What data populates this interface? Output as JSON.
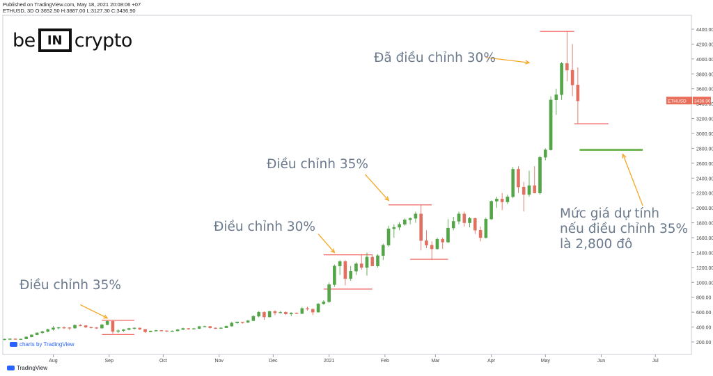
{
  "header": {
    "published": "Published on TradingView.com, May 18, 2021 20:08:06 +07",
    "ohlc": "ETHUSD, 3D O:3652.50 H:3887.00 L:3127.30 C:3436.90"
  },
  "logo": {
    "left": "be",
    "box": "IN",
    "right": "crypto"
  },
  "annotations": {
    "a1": "Điều chỉnh 35%",
    "a2": "Điều chỉnh 30%",
    "a3": "Điều chỉnh 35%",
    "a4": "Đã điều chỉnh 30%",
    "a5_line1": "Mức giá dự tính",
    "a5_line2": "nếu điều chỉnh 35%",
    "a5_line3": "là 2,800 đô"
  },
  "footer": {
    "charts_by": "charts by TradingView",
    "brand": "TradingView"
  },
  "colors": {
    "up": "#53a548",
    "down": "#e07060",
    "level_red": "#ef5350",
    "level_green": "#5aab3a",
    "arrow": "#f5a623",
    "price_tag": "#e96d5a"
  },
  "chart_data": {
    "type": "candlestick",
    "symbol": "ETHUSD",
    "interval": "3D",
    "price_label": "3436.90",
    "current_price": 3436.9,
    "ylim": [
      0,
      4500
    ],
    "yticks": [
      200,
      400,
      600,
      800,
      1000,
      1200,
      1400,
      1600,
      1800,
      2000,
      2200,
      2400,
      2600,
      2800,
      3000,
      3200,
      3400,
      3600,
      3800,
      4000,
      4200,
      4400
    ],
    "ytick_labels": [
      "200.00",
      "400.00",
      "600.00",
      "800.00",
      "1000.00",
      "1200.00",
      "1400.00",
      "1600.00",
      "1800.00",
      "2000.00",
      "2200.00",
      "2400.00",
      "2600.00",
      "2800.00",
      "3000.00",
      "3200.00",
      "3400.00",
      "3600.00",
      "3800.00",
      "4000.00",
      "4200.00",
      "4400.00"
    ],
    "xticks": [
      {
        "label": "Aug",
        "date": "2020-08-01"
      },
      {
        "label": "Sep",
        "date": "2020-09-01"
      },
      {
        "label": "Oct",
        "date": "2020-10-01"
      },
      {
        "label": "Nov",
        "date": "2020-11-01"
      },
      {
        "label": "Dec",
        "date": "2020-12-01"
      },
      {
        "label": "2021",
        "date": "2021-01-01"
      },
      {
        "label": "Feb",
        "date": "2021-02-01"
      },
      {
        "label": "Mar",
        "date": "2021-03-01"
      },
      {
        "label": "Apr",
        "date": "2021-04-01"
      },
      {
        "label": "May",
        "date": "2021-05-01"
      },
      {
        "label": "Jun",
        "date": "2021-06-01"
      },
      {
        "label": "Jul",
        "date": "2021-07-01"
      }
    ],
    "candles": [
      {
        "t": "2020-07-05",
        "o": 230,
        "h": 245,
        "l": 222,
        "c": 238
      },
      {
        "t": "2020-07-08",
        "o": 238,
        "h": 250,
        "l": 232,
        "c": 242
      },
      {
        "t": "2020-07-11",
        "o": 242,
        "h": 246,
        "l": 232,
        "c": 237
      },
      {
        "t": "2020-07-14",
        "o": 237,
        "h": 245,
        "l": 230,
        "c": 240
      },
      {
        "t": "2020-07-17",
        "o": 240,
        "h": 275,
        "l": 236,
        "c": 268
      },
      {
        "t": "2020-07-20",
        "o": 268,
        "h": 300,
        "l": 262,
        "c": 296
      },
      {
        "t": "2020-07-23",
        "o": 296,
        "h": 330,
        "l": 290,
        "c": 322
      },
      {
        "t": "2020-07-26",
        "o": 322,
        "h": 350,
        "l": 310,
        "c": 340
      },
      {
        "t": "2020-07-29",
        "o": 340,
        "h": 378,
        "l": 330,
        "c": 368
      },
      {
        "t": "2020-08-01",
        "o": 368,
        "h": 415,
        "l": 352,
        "c": 390
      },
      {
        "t": "2020-08-04",
        "o": 390,
        "h": 400,
        "l": 370,
        "c": 395
      },
      {
        "t": "2020-08-07",
        "o": 395,
        "h": 410,
        "l": 375,
        "c": 392
      },
      {
        "t": "2020-08-10",
        "o": 392,
        "h": 398,
        "l": 360,
        "c": 385
      },
      {
        "t": "2020-08-13",
        "o": 385,
        "h": 435,
        "l": 380,
        "c": 425
      },
      {
        "t": "2020-08-16",
        "o": 425,
        "h": 440,
        "l": 410,
        "c": 420
      },
      {
        "t": "2020-08-19",
        "o": 420,
        "h": 425,
        "l": 385,
        "c": 398
      },
      {
        "t": "2020-08-22",
        "o": 398,
        "h": 405,
        "l": 380,
        "c": 392
      },
      {
        "t": "2020-08-25",
        "o": 392,
        "h": 400,
        "l": 375,
        "c": 385
      },
      {
        "t": "2020-08-28",
        "o": 385,
        "h": 440,
        "l": 380,
        "c": 432
      },
      {
        "t": "2020-08-31",
        "o": 432,
        "h": 490,
        "l": 425,
        "c": 478
      },
      {
        "t": "2020-09-03",
        "o": 478,
        "h": 485,
        "l": 310,
        "c": 340
      },
      {
        "t": "2020-09-06",
        "o": 340,
        "h": 370,
        "l": 320,
        "c": 352
      },
      {
        "t": "2020-09-09",
        "o": 352,
        "h": 372,
        "l": 335,
        "c": 365
      },
      {
        "t": "2020-09-12",
        "o": 365,
        "h": 390,
        "l": 355,
        "c": 382
      },
      {
        "t": "2020-09-15",
        "o": 382,
        "h": 395,
        "l": 365,
        "c": 388
      },
      {
        "t": "2020-09-18",
        "o": 388,
        "h": 392,
        "l": 360,
        "c": 370
      },
      {
        "t": "2020-09-21",
        "o": 370,
        "h": 372,
        "l": 320,
        "c": 335
      },
      {
        "t": "2020-09-24",
        "o": 335,
        "h": 352,
        "l": 330,
        "c": 348
      },
      {
        "t": "2020-09-27",
        "o": 348,
        "h": 362,
        "l": 340,
        "c": 355
      },
      {
        "t": "2020-09-30",
        "o": 355,
        "h": 362,
        "l": 345,
        "c": 350
      },
      {
        "t": "2020-10-03",
        "o": 350,
        "h": 356,
        "l": 335,
        "c": 345
      },
      {
        "t": "2020-10-06",
        "o": 345,
        "h": 355,
        "l": 335,
        "c": 348
      },
      {
        "t": "2020-10-09",
        "o": 348,
        "h": 372,
        "l": 342,
        "c": 366
      },
      {
        "t": "2020-10-12",
        "o": 366,
        "h": 392,
        "l": 360,
        "c": 382
      },
      {
        "t": "2020-10-15",
        "o": 382,
        "h": 385,
        "l": 365,
        "c": 372
      },
      {
        "t": "2020-10-18",
        "o": 372,
        "h": 390,
        "l": 368,
        "c": 380
      },
      {
        "t": "2020-10-21",
        "o": 380,
        "h": 415,
        "l": 375,
        "c": 408
      },
      {
        "t": "2020-10-24",
        "o": 408,
        "h": 418,
        "l": 400,
        "c": 410
      },
      {
        "t": "2020-10-27",
        "o": 410,
        "h": 412,
        "l": 380,
        "c": 388
      },
      {
        "t": "2020-10-30",
        "o": 388,
        "h": 395,
        "l": 375,
        "c": 385
      },
      {
        "t": "2020-11-02",
        "o": 385,
        "h": 395,
        "l": 375,
        "c": 390
      },
      {
        "t": "2020-11-05",
        "o": 390,
        "h": 420,
        "l": 385,
        "c": 412
      },
      {
        "t": "2020-11-08",
        "o": 412,
        "h": 470,
        "l": 405,
        "c": 455
      },
      {
        "t": "2020-11-11",
        "o": 455,
        "h": 475,
        "l": 445,
        "c": 468
      },
      {
        "t": "2020-11-14",
        "o": 468,
        "h": 472,
        "l": 445,
        "c": 462
      },
      {
        "t": "2020-11-17",
        "o": 462,
        "h": 495,
        "l": 455,
        "c": 485
      },
      {
        "t": "2020-11-20",
        "o": 485,
        "h": 560,
        "l": 478,
        "c": 545
      },
      {
        "t": "2020-11-23",
        "o": 545,
        "h": 615,
        "l": 530,
        "c": 600
      },
      {
        "t": "2020-11-26",
        "o": 600,
        "h": 610,
        "l": 495,
        "c": 535
      },
      {
        "t": "2020-11-29",
        "o": 535,
        "h": 620,
        "l": 530,
        "c": 610
      },
      {
        "t": "2020-12-02",
        "o": 610,
        "h": 625,
        "l": 560,
        "c": 590
      },
      {
        "t": "2020-12-05",
        "o": 590,
        "h": 615,
        "l": 585,
        "c": 600
      },
      {
        "t": "2020-12-08",
        "o": 600,
        "h": 610,
        "l": 560,
        "c": 575
      },
      {
        "t": "2020-12-11",
        "o": 575,
        "h": 600,
        "l": 545,
        "c": 590
      },
      {
        "t": "2020-12-14",
        "o": 590,
        "h": 595,
        "l": 575,
        "c": 580
      },
      {
        "t": "2020-12-17",
        "o": 580,
        "h": 670,
        "l": 575,
        "c": 650
      },
      {
        "t": "2020-12-20",
        "o": 650,
        "h": 672,
        "l": 620,
        "c": 640
      },
      {
        "t": "2020-12-23",
        "o": 640,
        "h": 650,
        "l": 560,
        "c": 600
      },
      {
        "t": "2020-12-26",
        "o": 600,
        "h": 720,
        "l": 595,
        "c": 712
      },
      {
        "t": "2020-12-29",
        "o": 712,
        "h": 760,
        "l": 700,
        "c": 740
      },
      {
        "t": "2021-01-01",
        "o": 740,
        "h": 1000,
        "l": 725,
        "c": 970
      },
      {
        "t": "2021-01-04",
        "o": 970,
        "h": 1240,
        "l": 940,
        "c": 1220
      },
      {
        "t": "2021-01-07",
        "o": 1220,
        "h": 1300,
        "l": 1100,
        "c": 1280
      },
      {
        "t": "2021-01-10",
        "o": 1280,
        "h": 1300,
        "l": 960,
        "c": 1050
      },
      {
        "t": "2021-01-13",
        "o": 1050,
        "h": 1220,
        "l": 1020,
        "c": 1150
      },
      {
        "t": "2021-01-16",
        "o": 1150,
        "h": 1270,
        "l": 1100,
        "c": 1250
      },
      {
        "t": "2021-01-19",
        "o": 1250,
        "h": 1380,
        "l": 1170,
        "c": 1200
      },
      {
        "t": "2021-01-22",
        "o": 1200,
        "h": 1400,
        "l": 1090,
        "c": 1340
      },
      {
        "t": "2021-01-25",
        "o": 1340,
        "h": 1375,
        "l": 1240,
        "c": 1220
      },
      {
        "t": "2021-01-28",
        "o": 1220,
        "h": 1380,
        "l": 1200,
        "c": 1360
      },
      {
        "t": "2021-01-31",
        "o": 1360,
        "h": 1520,
        "l": 1300,
        "c": 1500
      },
      {
        "t": "2021-02-03",
        "o": 1500,
        "h": 1760,
        "l": 1480,
        "c": 1720
      },
      {
        "t": "2021-02-06",
        "o": 1720,
        "h": 1780,
        "l": 1600,
        "c": 1740
      },
      {
        "t": "2021-02-09",
        "o": 1740,
        "h": 1810,
        "l": 1700,
        "c": 1780
      },
      {
        "t": "2021-02-12",
        "o": 1780,
        "h": 1860,
        "l": 1760,
        "c": 1840
      },
      {
        "t": "2021-02-15",
        "o": 1840,
        "h": 1870,
        "l": 1780,
        "c": 1860
      },
      {
        "t": "2021-02-18",
        "o": 1860,
        "h": 1950,
        "l": 1800,
        "c": 1920
      },
      {
        "t": "2021-02-21",
        "o": 1920,
        "h": 2040,
        "l": 1430,
        "c": 1560
      },
      {
        "t": "2021-02-24",
        "o": 1560,
        "h": 1700,
        "l": 1460,
        "c": 1500
      },
      {
        "t": "2021-02-27",
        "o": 1500,
        "h": 1550,
        "l": 1300,
        "c": 1450
      },
      {
        "t": "2021-03-02",
        "o": 1450,
        "h": 1600,
        "l": 1440,
        "c": 1580
      },
      {
        "t": "2021-03-05",
        "o": 1580,
        "h": 1600,
        "l": 1450,
        "c": 1540
      },
      {
        "t": "2021-03-08",
        "o": 1540,
        "h": 1850,
        "l": 1530,
        "c": 1730
      },
      {
        "t": "2021-03-11",
        "o": 1730,
        "h": 1880,
        "l": 1700,
        "c": 1820
      },
      {
        "t": "2021-03-14",
        "o": 1820,
        "h": 1950,
        "l": 1780,
        "c": 1920
      },
      {
        "t": "2021-03-17",
        "o": 1920,
        "h": 1950,
        "l": 1750,
        "c": 1800
      },
      {
        "t": "2021-03-20",
        "o": 1800,
        "h": 1880,
        "l": 1740,
        "c": 1860
      },
      {
        "t": "2021-03-23",
        "o": 1860,
        "h": 1870,
        "l": 1650,
        "c": 1700
      },
      {
        "t": "2021-03-26",
        "o": 1700,
        "h": 1750,
        "l": 1550,
        "c": 1600
      },
      {
        "t": "2021-03-29",
        "o": 1600,
        "h": 1870,
        "l": 1590,
        "c": 1850
      },
      {
        "t": "2021-04-01",
        "o": 1850,
        "h": 2100,
        "l": 1840,
        "c": 2090
      },
      {
        "t": "2021-04-04",
        "o": 2090,
        "h": 2150,
        "l": 2000,
        "c": 2120
      },
      {
        "t": "2021-04-07",
        "o": 2120,
        "h": 2200,
        "l": 1970,
        "c": 2080
      },
      {
        "t": "2021-04-10",
        "o": 2080,
        "h": 2180,
        "l": 2050,
        "c": 2150
      },
      {
        "t": "2021-04-13",
        "o": 2150,
        "h": 2550,
        "l": 2130,
        "c": 2520
      },
      {
        "t": "2021-04-16",
        "o": 2520,
        "h": 2560,
        "l": 2200,
        "c": 2280
      },
      {
        "t": "2021-04-19",
        "o": 2280,
        "h": 2350,
        "l": 1950,
        "c": 2180
      },
      {
        "t": "2021-04-22",
        "o": 2180,
        "h": 2500,
        "l": 2150,
        "c": 2300
      },
      {
        "t": "2021-04-25",
        "o": 2300,
        "h": 2560,
        "l": 2200,
        "c": 2200
      },
      {
        "t": "2021-04-28",
        "o": 2200,
        "h": 2700,
        "l": 2180,
        "c": 2680
      },
      {
        "t": "2021-05-01",
        "o": 2680,
        "h": 2800,
        "l": 2640,
        "c": 2780
      },
      {
        "t": "2021-05-04",
        "o": 2780,
        "h": 3500,
        "l": 2770,
        "c": 3450
      },
      {
        "t": "2021-05-07",
        "o": 3450,
        "h": 3600,
        "l": 3250,
        "c": 3520
      },
      {
        "t": "2021-05-10",
        "o": 3520,
        "h": 3960,
        "l": 3450,
        "c": 3940
      },
      {
        "t": "2021-05-13",
        "o": 3940,
        "h": 4370,
        "l": 3700,
        "c": 3850
      },
      {
        "t": "2021-05-16",
        "o": 3850,
        "h": 4200,
        "l": 3500,
        "c": 3650
      },
      {
        "t": "2021-05-19",
        "o": 3652.5,
        "h": 3887,
        "l": 3127.3,
        "c": 3436.9
      }
    ],
    "levels": [
      {
        "kind": "red",
        "y": 490,
        "from": "2020-08-28",
        "to": "2020-09-15"
      },
      {
        "kind": "red",
        "y": 300,
        "from": "2020-08-28",
        "to": "2020-09-15"
      },
      {
        "kind": "red",
        "y": 1370,
        "from": "2020-12-29",
        "to": "2021-01-25"
      },
      {
        "kind": "red",
        "y": 910,
        "from": "2020-12-29",
        "to": "2021-01-25"
      },
      {
        "kind": "red",
        "y": 2040,
        "from": "2021-02-03",
        "to": "2021-02-27"
      },
      {
        "kind": "red",
        "y": 1310,
        "from": "2021-02-15",
        "to": "2021-03-08"
      },
      {
        "kind": "red",
        "y": 4370,
        "from": "2021-04-28",
        "to": "2021-05-17"
      },
      {
        "kind": "red",
        "y": 3130,
        "from": "2021-05-17",
        "to": "2021-06-05"
      },
      {
        "kind": "green",
        "y": 2780,
        "from": "2021-05-20",
        "to": "2021-06-24"
      }
    ],
    "arrows": [
      {
        "from": {
          "t": "2020-08-16",
          "y": 700
        },
        "to": {
          "t": "2020-08-31",
          "y": 520
        }
      },
      {
        "from": {
          "t": "2020-12-26",
          "y": 1650
        },
        "to": {
          "t": "2021-01-04",
          "y": 1400
        }
      },
      {
        "from": {
          "t": "2021-01-21",
          "y": 2450
        },
        "to": {
          "t": "2021-02-03",
          "y": 2100
        }
      },
      {
        "from": {
          "t": "2021-03-29",
          "y": 4020
        },
        "to": {
          "t": "2021-04-22",
          "y": 3950
        }
      },
      {
        "from": {
          "t": "2021-06-24",
          "y": 2030
        },
        "to": {
          "t": "2021-06-13",
          "y": 2720
        }
      }
    ]
  }
}
